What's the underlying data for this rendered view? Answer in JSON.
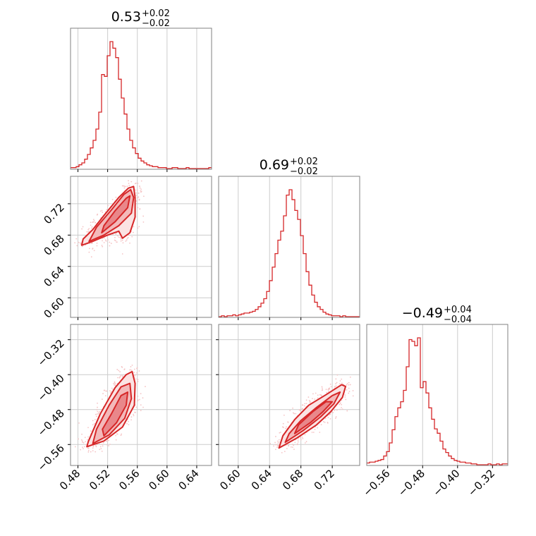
{
  "colors": {
    "accent": "#d62728",
    "fill_inner": "#e9878a",
    "fill_mid": "#f3b9ba",
    "fill_outer": "#fbe3e3",
    "points": "#f5c4c5",
    "grid": "#cccccc",
    "frame": "#808080"
  },
  "chart_data": [
    {
      "type": "histogram",
      "panel": "param-1-marginal",
      "title": {
        "value": "0.53",
        "plus": "+0.02",
        "minus": "−0.02"
      },
      "xlim": [
        0.47,
        0.66
      ],
      "x_ticks": [
        0.48,
        0.52,
        0.56,
        0.6,
        0.64
      ],
      "x_tick_labels": [
        "0.48",
        "0.52",
        "0.56",
        "0.60",
        "0.64"
      ],
      "bin_edges_start": 0.47,
      "bin_width": 0.0038,
      "counts": [
        1,
        1,
        2,
        4,
        6,
        10,
        15,
        22,
        30,
        42,
        60,
        100,
        98,
        120,
        135,
        128,
        118,
        95,
        75,
        58,
        42,
        30,
        22,
        16,
        11,
        8,
        6,
        4,
        3,
        2,
        2,
        1,
        1,
        1,
        0,
        0,
        1,
        1,
        0,
        0,
        0,
        1,
        0,
        0,
        0,
        0,
        0,
        0,
        0,
        1
      ]
    },
    {
      "type": "contour",
      "panel": "param-1-vs-param-2",
      "xlim": [
        0.47,
        0.66
      ],
      "ylim": [
        0.575,
        0.755
      ],
      "y_ticks": [
        0.6,
        0.64,
        0.68,
        0.72
      ],
      "y_tick_labels": [
        "0.60",
        "0.64",
        "0.68",
        "0.72"
      ],
      "levels": [
        {
          "name": "outer",
          "points": [
            [
              0.485,
              0.667
            ],
            [
              0.5,
              0.672
            ],
            [
              0.52,
              0.68
            ],
            [
              0.535,
              0.685
            ],
            [
              0.54,
              0.676
            ],
            [
              0.55,
              0.683
            ],
            [
              0.557,
              0.703
            ],
            [
              0.557,
              0.728
            ],
            [
              0.555,
              0.742
            ],
            [
              0.548,
              0.74
            ],
            [
              0.535,
              0.728
            ],
            [
              0.515,
              0.705
            ],
            [
              0.5,
              0.687
            ],
            [
              0.487,
              0.675
            ]
          ]
        },
        {
          "name": "middle",
          "points": [
            [
              0.495,
              0.672
            ],
            [
              0.515,
              0.68
            ],
            [
              0.535,
              0.692
            ],
            [
              0.552,
              0.708
            ],
            [
              0.555,
              0.728
            ],
            [
              0.551,
              0.738
            ],
            [
              0.542,
              0.732
            ],
            [
              0.525,
              0.712
            ],
            [
              0.505,
              0.69
            ]
          ]
        },
        {
          "name": "inner",
          "points": [
            [
              0.512,
              0.683
            ],
            [
              0.53,
              0.697
            ],
            [
              0.547,
              0.715
            ],
            [
              0.55,
              0.73
            ],
            [
              0.545,
              0.727
            ],
            [
              0.53,
              0.711
            ],
            [
              0.515,
              0.692
            ]
          ]
        }
      ]
    },
    {
      "type": "histogram",
      "panel": "param-2-marginal",
      "title": {
        "value": "0.69",
        "plus": "+0.02",
        "minus": "−0.02"
      },
      "xlim": [
        0.575,
        0.755
      ],
      "x_ticks": [
        0.6,
        0.64,
        0.68,
        0.72
      ],
      "x_tick_labels": [
        "0.60",
        "0.64",
        "0.68",
        "0.72"
      ],
      "bin_edges_start": 0.575,
      "bin_width": 0.0036,
      "counts": [
        0,
        1,
        0,
        1,
        1,
        2,
        1,
        2,
        3,
        4,
        4,
        5,
        6,
        8,
        11,
        15,
        20,
        28,
        40,
        55,
        70,
        85,
        95,
        112,
        135,
        141,
        130,
        118,
        108,
        90,
        70,
        50,
        35,
        24,
        16,
        11,
        8,
        5,
        3,
        2,
        1,
        1,
        1,
        0,
        1,
        0,
        0,
        0,
        0,
        0
      ]
    },
    {
      "type": "contour",
      "panel": "param-1-vs-param-3",
      "xlim": [
        0.47,
        0.66
      ],
      "ylim": [
        -0.608,
        -0.285
      ],
      "y_ticks": [
        -0.56,
        -0.48,
        -0.4,
        -0.32
      ],
      "y_tick_labels": [
        "−0.56",
        "−0.48",
        "−0.40",
        "−0.32"
      ],
      "levels": [
        {
          "name": "outer",
          "points": [
            [
              0.492,
              -0.565
            ],
            [
              0.515,
              -0.552
            ],
            [
              0.54,
              -0.52
            ],
            [
              0.556,
              -0.47
            ],
            [
              0.557,
              -0.42
            ],
            [
              0.553,
              -0.393
            ],
            [
              0.545,
              -0.4
            ],
            [
              0.53,
              -0.43
            ],
            [
              0.51,
              -0.49
            ],
            [
              0.494,
              -0.553
            ]
          ]
        },
        {
          "name": "middle",
          "points": [
            [
              0.5,
              -0.558
            ],
            [
              0.522,
              -0.538
            ],
            [
              0.543,
              -0.5
            ],
            [
              0.552,
              -0.455
            ],
            [
              0.55,
              -0.42
            ],
            [
              0.538,
              -0.428
            ],
            [
              0.522,
              -0.47
            ],
            [
              0.505,
              -0.525
            ]
          ]
        },
        {
          "name": "inner",
          "points": [
            [
              0.515,
              -0.54
            ],
            [
              0.532,
              -0.51
            ],
            [
              0.545,
              -0.47
            ],
            [
              0.547,
              -0.44
            ],
            [
              0.538,
              -0.448
            ],
            [
              0.525,
              -0.49
            ],
            [
              0.513,
              -0.525
            ]
          ]
        }
      ]
    },
    {
      "type": "contour",
      "panel": "param-2-vs-param-3",
      "xlim": [
        0.575,
        0.755
      ],
      "ylim": [
        -0.608,
        -0.285
      ],
      "levels": [
        {
          "name": "outer",
          "points": [
            [
              0.652,
              -0.568
            ],
            [
              0.675,
              -0.545
            ],
            [
              0.7,
              -0.515
            ],
            [
              0.718,
              -0.485
            ],
            [
              0.733,
              -0.452
            ],
            [
              0.737,
              -0.427
            ],
            [
              0.732,
              -0.423
            ],
            [
              0.712,
              -0.446
            ],
            [
              0.69,
              -0.47
            ],
            [
              0.672,
              -0.503
            ],
            [
              0.657,
              -0.54
            ]
          ]
        },
        {
          "name": "middle",
          "points": [
            [
              0.66,
              -0.555
            ],
            [
              0.683,
              -0.528
            ],
            [
              0.705,
              -0.497
            ],
            [
              0.722,
              -0.467
            ],
            [
              0.73,
              -0.44
            ],
            [
              0.72,
              -0.448
            ],
            [
              0.7,
              -0.475
            ],
            [
              0.68,
              -0.505
            ],
            [
              0.665,
              -0.535
            ]
          ]
        },
        {
          "name": "inner",
          "points": [
            [
              0.672,
              -0.535
            ],
            [
              0.692,
              -0.51
            ],
            [
              0.708,
              -0.485
            ],
            [
              0.72,
              -0.462
            ],
            [
              0.712,
              -0.462
            ],
            [
              0.695,
              -0.485
            ],
            [
              0.677,
              -0.515
            ]
          ]
        }
      ]
    },
    {
      "type": "histogram",
      "panel": "param-3-marginal",
      "title": {
        "value": "−0.49",
        "plus": "+0.04",
        "minus": "−0.04"
      },
      "xlim": [
        -0.608,
        -0.285
      ],
      "x_ticks": [
        -0.56,
        -0.48,
        -0.4,
        -0.32
      ],
      "x_tick_labels": [
        "−0.56",
        "−0.48",
        "−0.40",
        "−0.32"
      ],
      "bin_edges_start": -0.608,
      "bin_width": 0.00646,
      "counts": [
        2,
        3,
        3,
        4,
        5,
        6,
        10,
        15,
        25,
        40,
        55,
        65,
        72,
        85,
        112,
        143,
        141,
        136,
        145,
        88,
        95,
        82,
        65,
        52,
        41,
        36,
        27,
        18,
        14,
        10,
        7,
        5,
        4,
        3,
        3,
        2,
        2,
        1,
        1,
        0,
        0,
        0,
        0,
        1,
        0,
        0,
        1,
        0,
        1,
        1
      ]
    }
  ]
}
